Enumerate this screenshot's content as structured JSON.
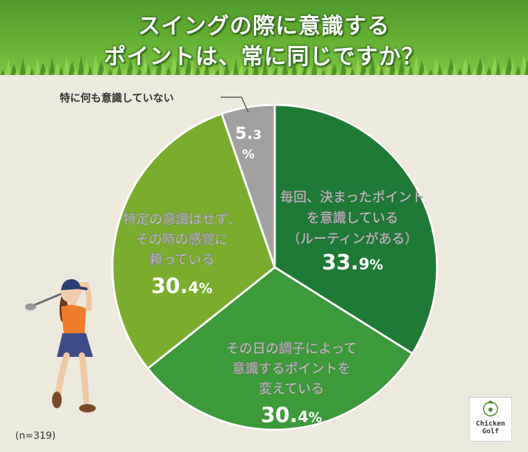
{
  "title_lines": [
    "スイングの際に意識する",
    "ポイントは、常に同じですか？"
  ],
  "sample_note": "(n=319)",
  "logo": {
    "line1": "Chicken",
    "line2": "Golf"
  },
  "colors": {
    "slice1": "#1f7a35",
    "slice2": "#3d9a3a",
    "slice3": "#7aad2e",
    "slice4": "#a0a0a0",
    "header": "#5fab30"
  },
  "chart_data": {
    "type": "pie",
    "title": "スイングの際に意識するポイントは、常に同じですか？",
    "slices": [
      {
        "label_lines": [
          "毎回、決まったポイント",
          "を意識している",
          "（ルーティンがある）"
        ],
        "value": 33.9,
        "value_num": "33.",
        "value_dec": "9",
        "unit": "%",
        "color": "#1f7a35"
      },
      {
        "label_lines": [
          "その日の調子によって",
          "意識するポイントを",
          "変えている"
        ],
        "value": 30.4,
        "value_num": "30.",
        "value_dec": "4",
        "unit": "%",
        "color": "#3d9a3a"
      },
      {
        "label_lines": [
          "特定の意識はせず、",
          "その時の感覚に",
          "頼っている"
        ],
        "value": 30.4,
        "value_num": "30.",
        "value_dec": "4",
        "unit": "%",
        "color": "#7aad2e"
      },
      {
        "label_lines": [
          "特に何も意識していない"
        ],
        "value": 5.3,
        "value_num": "5.",
        "value_dec": "3",
        "unit": "%",
        "color": "#a0a0a0"
      }
    ]
  }
}
